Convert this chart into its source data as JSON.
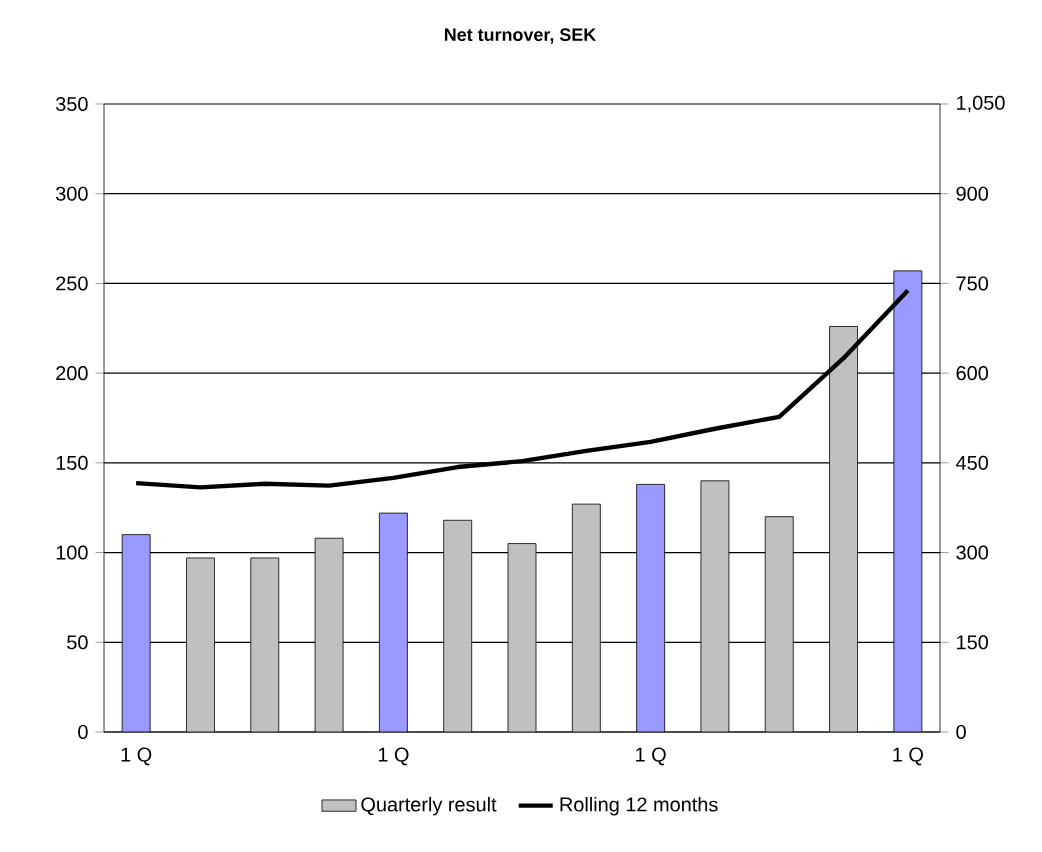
{
  "chart_data": {
    "type": "bar",
    "title": "Net turnover, SEK",
    "categories": [
      "1 Q",
      null,
      null,
      null,
      "1 Q",
      null,
      null,
      null,
      "1 Q",
      null,
      null,
      null,
      "1 Q"
    ],
    "series": [
      {
        "name": "Quarterly result",
        "color": "#c0c0c0",
        "colors": [
          "#9999ff",
          "#c0c0c0",
          "#c0c0c0",
          "#c0c0c0",
          "#9999ff",
          "#c0c0c0",
          "#c0c0c0",
          "#c0c0c0",
          "#9999ff",
          "#c0c0c0",
          "#c0c0c0",
          "#c0c0c0",
          "#9999ff"
        ],
        "values": [
          110,
          97,
          97,
          108,
          122,
          118,
          105,
          127,
          138,
          140,
          120,
          226,
          257
        ]
      },
      {
        "name": "Rolling 12 months",
        "type": "line",
        "axis": "y2",
        "color": "#000000",
        "values": [
          416,
          409,
          415,
          412,
          425,
          443,
          453,
          470,
          485,
          507,
          527,
          625,
          738
        ]
      }
    ],
    "ylim": [
      0,
      350
    ],
    "yticks": [
      0,
      50,
      100,
      150,
      200,
      250,
      300,
      350
    ],
    "y2lim": [
      0,
      1050
    ],
    "y2ticks": [
      0,
      150,
      300,
      450,
      600,
      750,
      900,
      {
        "value": 1050,
        "label": "1,050"
      }
    ],
    "grid": "y",
    "legend": "bottom"
  }
}
